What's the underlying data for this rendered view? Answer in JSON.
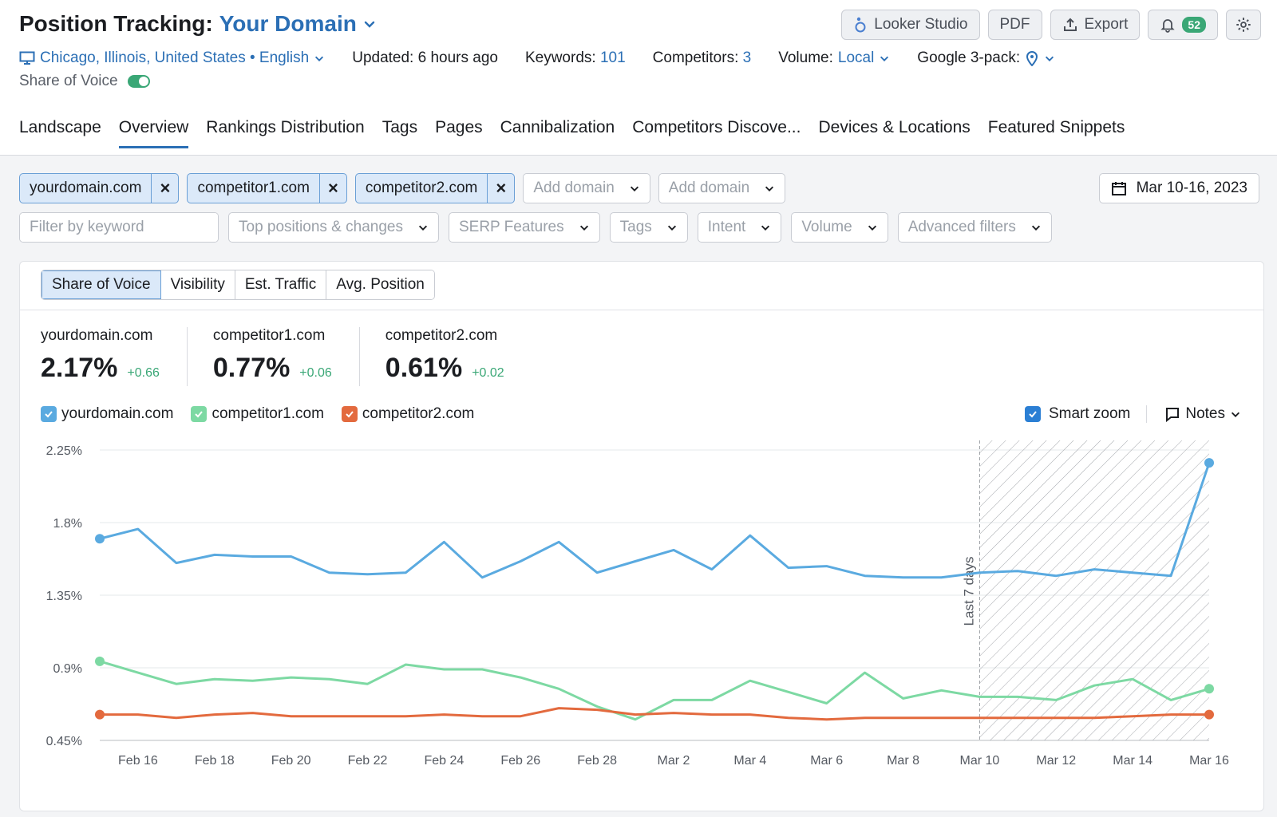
{
  "header": {
    "title_static": "Position Tracking:",
    "title_domain": "Your Domain"
  },
  "actions": {
    "looker": "Looker Studio",
    "pdf": "PDF",
    "export": "Export",
    "notifications_count": "52"
  },
  "meta": {
    "location": "Chicago, Illinois, United States • English",
    "updated": "Updated: 6 hours ago",
    "keywords_label": "Keywords:",
    "keywords_value": "101",
    "competitors_label": "Competitors:",
    "competitors_value": "3",
    "volume_label": "Volume:",
    "volume_value": "Local",
    "pack_label": "Google 3-pack:",
    "sov_label": "Share of Voice"
  },
  "tabs": [
    {
      "label": "Landscape"
    },
    {
      "label": "Overview"
    },
    {
      "label": "Rankings Distribution"
    },
    {
      "label": "Tags"
    },
    {
      "label": "Pages"
    },
    {
      "label": "Cannibalization"
    },
    {
      "label": "Competitors Discove..."
    },
    {
      "label": "Devices & Locations"
    },
    {
      "label": "Featured Snippets"
    }
  ],
  "domains": [
    "yourdomain.com",
    "competitor1.com",
    "competitor2.com"
  ],
  "add_domain": "Add domain",
  "date_range": "Mar 10-16, 2023",
  "filters": {
    "keyword_placeholder": "Filter by keyword",
    "top_positions": "Top positions & changes",
    "serp": "SERP Features",
    "tags": "Tags",
    "intent": "Intent",
    "volume": "Volume",
    "advanced": "Advanced filters"
  },
  "metric_tabs": [
    "Share of Voice",
    "Visibility",
    "Est. Traffic",
    "Avg. Position"
  ],
  "stats": [
    {
      "name": "yourdomain.com",
      "value": "2.17%",
      "delta": "+0.66"
    },
    {
      "name": "competitor1.com",
      "value": "0.77%",
      "delta": "+0.06"
    },
    {
      "name": "competitor2.com",
      "value": "0.61%",
      "delta": "+0.02"
    }
  ],
  "controls": {
    "smart_zoom": "Smart zoom",
    "notes": "Notes"
  },
  "colors": {
    "accent": "#2b6fb5",
    "yourdomain": "#5aaae0",
    "competitor1": "#7dd9a3",
    "competitor2": "#e36a3e",
    "positive": "#3aa776"
  },
  "chart_data": {
    "type": "line",
    "x": [
      "Feb 15",
      "Feb 16",
      "Feb 17",
      "Feb 18",
      "Feb 19",
      "Feb 20",
      "Feb 21",
      "Feb 22",
      "Feb 23",
      "Feb 24",
      "Feb 25",
      "Feb 26",
      "Feb 27",
      "Feb 28",
      "Mar 1",
      "Mar 2",
      "Mar 3",
      "Mar 4",
      "Mar 5",
      "Mar 6",
      "Mar 7",
      "Mar 8",
      "Mar 9",
      "Mar 10",
      "Mar 11",
      "Mar 12",
      "Mar 13",
      "Mar 14",
      "Mar 15",
      "Mar 16"
    ],
    "x_tick_labels": [
      "Feb 16",
      "Feb 18",
      "Feb 20",
      "Feb 22",
      "Feb 24",
      "Feb 26",
      "Feb 28",
      "Mar 2",
      "Mar 4",
      "Mar 6",
      "Mar 8",
      "Mar 10",
      "Mar 12",
      "Mar 14",
      "Mar 16"
    ],
    "y_ticks": [
      "2.25%",
      "1.8%",
      "1.35%",
      "0.9%",
      "0.45%"
    ],
    "ylim": [
      0.45,
      2.25
    ],
    "highlight_from": "Mar 10",
    "highlight_label": "Last 7 days",
    "series": [
      {
        "name": "yourdomain.com",
        "values": [
          1.7,
          1.76,
          1.55,
          1.6,
          1.59,
          1.59,
          1.49,
          1.48,
          1.49,
          1.68,
          1.46,
          1.56,
          1.68,
          1.49,
          1.56,
          1.63,
          1.51,
          1.72,
          1.52,
          1.53,
          1.47,
          1.46,
          1.46,
          1.49,
          1.5,
          1.47,
          1.51,
          1.49,
          1.47,
          2.17
        ]
      },
      {
        "name": "competitor1.com",
        "values": [
          0.94,
          0.87,
          0.8,
          0.83,
          0.82,
          0.84,
          0.83,
          0.8,
          0.92,
          0.89,
          0.89,
          0.84,
          0.77,
          0.66,
          0.58,
          0.7,
          0.7,
          0.82,
          0.75,
          0.68,
          0.87,
          0.71,
          0.76,
          0.72,
          0.72,
          0.7,
          0.79,
          0.83,
          0.7,
          0.77
        ]
      },
      {
        "name": "competitor2.com",
        "values": [
          0.61,
          0.61,
          0.59,
          0.61,
          0.62,
          0.6,
          0.6,
          0.6,
          0.6,
          0.61,
          0.6,
          0.6,
          0.65,
          0.64,
          0.61,
          0.62,
          0.61,
          0.61,
          0.59,
          0.58,
          0.59,
          0.59,
          0.59,
          0.59,
          0.59,
          0.59,
          0.59,
          0.6,
          0.61,
          0.61
        ]
      }
    ]
  }
}
